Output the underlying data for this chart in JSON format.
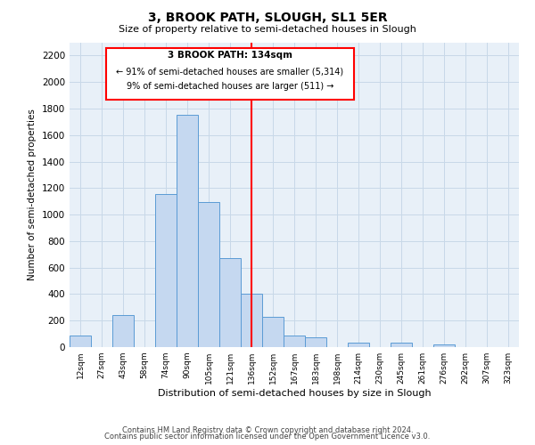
{
  "title": "3, BROOK PATH, SLOUGH, SL1 5ER",
  "subtitle": "Size of property relative to semi-detached houses in Slough",
  "xlabel": "Distribution of semi-detached houses by size in Slough",
  "ylabel": "Number of semi-detached properties",
  "bar_labels": [
    "12sqm",
    "27sqm",
    "43sqm",
    "58sqm",
    "74sqm",
    "90sqm",
    "105sqm",
    "121sqm",
    "136sqm",
    "152sqm",
    "167sqm",
    "183sqm",
    "198sqm",
    "214sqm",
    "230sqm",
    "245sqm",
    "261sqm",
    "276sqm",
    "292sqm",
    "307sqm",
    "323sqm"
  ],
  "bar_heights": [
    90,
    0,
    240,
    0,
    1155,
    1755,
    1095,
    670,
    405,
    230,
    90,
    75,
    0,
    35,
    0,
    35,
    0,
    20,
    0,
    0,
    0
  ],
  "bar_color": "#c5d8f0",
  "bar_edge_color": "#5b9bd5",
  "vline_x": 8,
  "vline_color": "red",
  "vline_label": "3 BROOK PATH: 134sqm",
  "annotation_left": "← 91% of semi-detached houses are smaller (5,314)",
  "annotation_right": "9% of semi-detached houses are larger (511) →",
  "box_edge_color": "red",
  "ylim": [
    0,
    2300
  ],
  "yticks": [
    0,
    200,
    400,
    600,
    800,
    1000,
    1200,
    1400,
    1600,
    1800,
    2000,
    2200
  ],
  "footer1": "Contains HM Land Registry data © Crown copyright and database right 2024.",
  "footer2": "Contains public sector information licensed under the Open Government Licence v3.0.",
  "background_color": "#ffffff",
  "grid_color": "#c8d8e8"
}
